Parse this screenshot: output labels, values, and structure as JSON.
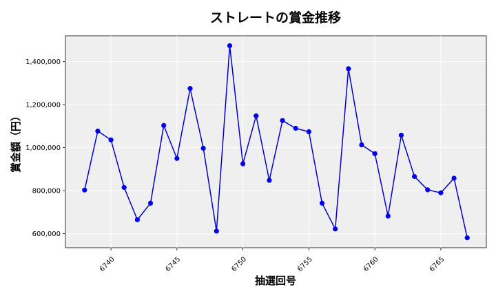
{
  "chart_data": {
    "type": "line",
    "title": "ストレートの賞金推移",
    "xlabel": "抽選回号",
    "ylabel": "賞金額（円）",
    "xlim": [
      6736.55,
      6768.45
    ],
    "ylim": [
      535000,
      1520000
    ],
    "grid": true,
    "x_ticks": [
      6740,
      6745,
      6750,
      6755,
      6760,
      6765
    ],
    "y_ticks": [
      600000,
      800000,
      1000000,
      1200000,
      1400000
    ],
    "x_tick_labels": [
      "6740",
      "6745",
      "6750",
      "6755",
      "6760",
      "6765"
    ],
    "y_tick_labels": [
      "600,000",
      "800,000",
      "1,000,000",
      "1,200,000",
      "1,400,000"
    ],
    "colors": {
      "line": "#0000cc",
      "marker": "#0000ee",
      "plot_bg": "#efefef",
      "grid": "#ffffff"
    },
    "x": [
      6738,
      6739,
      6740,
      6741,
      6742,
      6743,
      6744,
      6745,
      6746,
      6747,
      6748,
      6749,
      6750,
      6751,
      6752,
      6753,
      6754,
      6755,
      6756,
      6757,
      6758,
      6759,
      6760,
      6761,
      6762,
      6763,
      6764,
      6765,
      6766,
      6767
    ],
    "values": [
      803000,
      1077000,
      1036000,
      815000,
      665000,
      742000,
      1103000,
      950000,
      1275000,
      997000,
      612000,
      1474000,
      925000,
      1148000,
      848000,
      1126000,
      1090000,
      1074000,
      742000,
      622000,
      1367000,
      1013000,
      972000,
      682000,
      1058000,
      866000,
      804000,
      790000,
      858000,
      581000
    ]
  }
}
